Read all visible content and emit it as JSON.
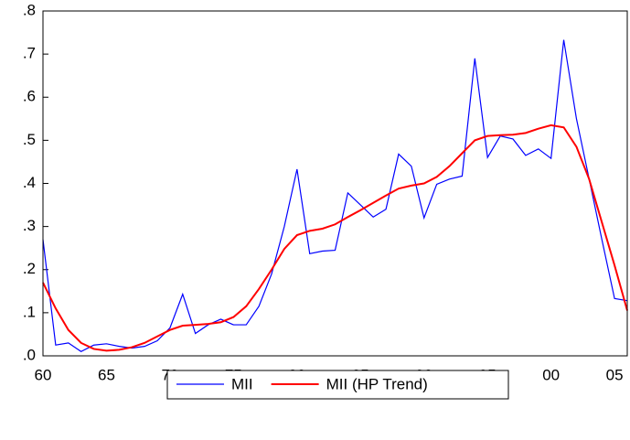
{
  "chart_data": {
    "type": "line",
    "categories": [
      "60",
      null,
      null,
      null,
      null,
      "65",
      null,
      null,
      null,
      null,
      "70",
      null,
      null,
      null,
      null,
      "75",
      null,
      null,
      null,
      null,
      "80",
      null,
      null,
      null,
      null,
      "85",
      null,
      null,
      null,
      null,
      "90",
      null,
      null,
      null,
      null,
      "95",
      null,
      null,
      null,
      null,
      "00",
      null,
      null,
      null,
      null,
      "05",
      null
    ],
    "series": [
      {
        "name": "MII",
        "color": "#0000ff",
        "values": [
          0.27,
          0.025,
          0.03,
          0.01,
          0.025,
          0.028,
          0.022,
          0.018,
          0.022,
          0.035,
          0.065,
          0.143,
          0.052,
          0.072,
          0.085,
          0.072,
          0.072,
          0.115,
          0.19,
          0.3,
          0.433,
          0.237,
          0.243,
          0.245,
          0.378,
          0.35,
          0.322,
          0.34,
          0.468,
          0.44,
          0.32,
          0.398,
          0.41,
          0.417,
          0.69,
          0.46,
          0.51,
          0.503,
          0.465,
          0.48,
          0.458,
          0.733,
          0.55,
          0.41,
          0.27,
          0.133,
          0.128
        ]
      },
      {
        "name": "MII (HP Trend)",
        "color": "#ff0000",
        "values": [
          0.17,
          0.11,
          0.06,
          0.03,
          0.016,
          0.012,
          0.014,
          0.02,
          0.03,
          0.045,
          0.06,
          0.07,
          0.072,
          0.074,
          0.078,
          0.09,
          0.115,
          0.155,
          0.2,
          0.248,
          0.28,
          0.29,
          0.295,
          0.305,
          0.322,
          0.338,
          0.355,
          0.372,
          0.388,
          0.395,
          0.4,
          0.415,
          0.44,
          0.47,
          0.5,
          0.51,
          0.512,
          0.513,
          0.517,
          0.527,
          0.535,
          0.53,
          0.485,
          0.41,
          0.31,
          0.21,
          0.105
        ]
      }
    ],
    "ylim": [
      0,
      0.8
    ],
    "yticks": [
      {
        "value": 0,
        "label": ".0"
      },
      {
        "value": 0.1,
        "label": ".1"
      },
      {
        "value": 0.2,
        "label": ".2"
      },
      {
        "value": 0.3,
        "label": ".3"
      },
      {
        "value": 0.4,
        "label": ".4"
      },
      {
        "value": 0.5,
        "label": ".5"
      },
      {
        "value": 0.6,
        "label": ".6"
      },
      {
        "value": 0.7,
        "label": ".7"
      },
      {
        "value": 0.8,
        "label": ".8"
      }
    ],
    "legend": "bottom"
  }
}
